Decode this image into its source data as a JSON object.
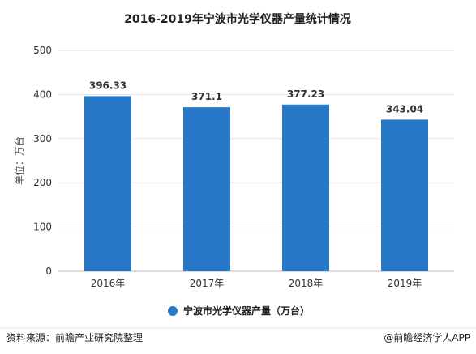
{
  "chart_data": {
    "type": "bar",
    "title": "2016-2019年宁波市光学仪器产量统计情况",
    "categories": [
      "2016年",
      "2017年",
      "2018年",
      "2019年"
    ],
    "series": [
      {
        "name": "宁波市光学仪器产量（万台）",
        "values": [
          396.33,
          371.1,
          377.23,
          343.04
        ]
      }
    ],
    "value_labels": [
      "396.33",
      "371.1",
      "377.23",
      "343.04"
    ],
    "ylabel": "单位：万台",
    "ylim": [
      0,
      500
    ],
    "yticks": [
      "0",
      "100",
      "200",
      "300",
      "400",
      "500"
    ],
    "grid": true,
    "legend_position": "bottom",
    "bar_color": "#2878c8"
  },
  "footer": {
    "source": "资料来源：前瞻产业研究院整理",
    "brand": "@前瞻经济学人APP"
  }
}
